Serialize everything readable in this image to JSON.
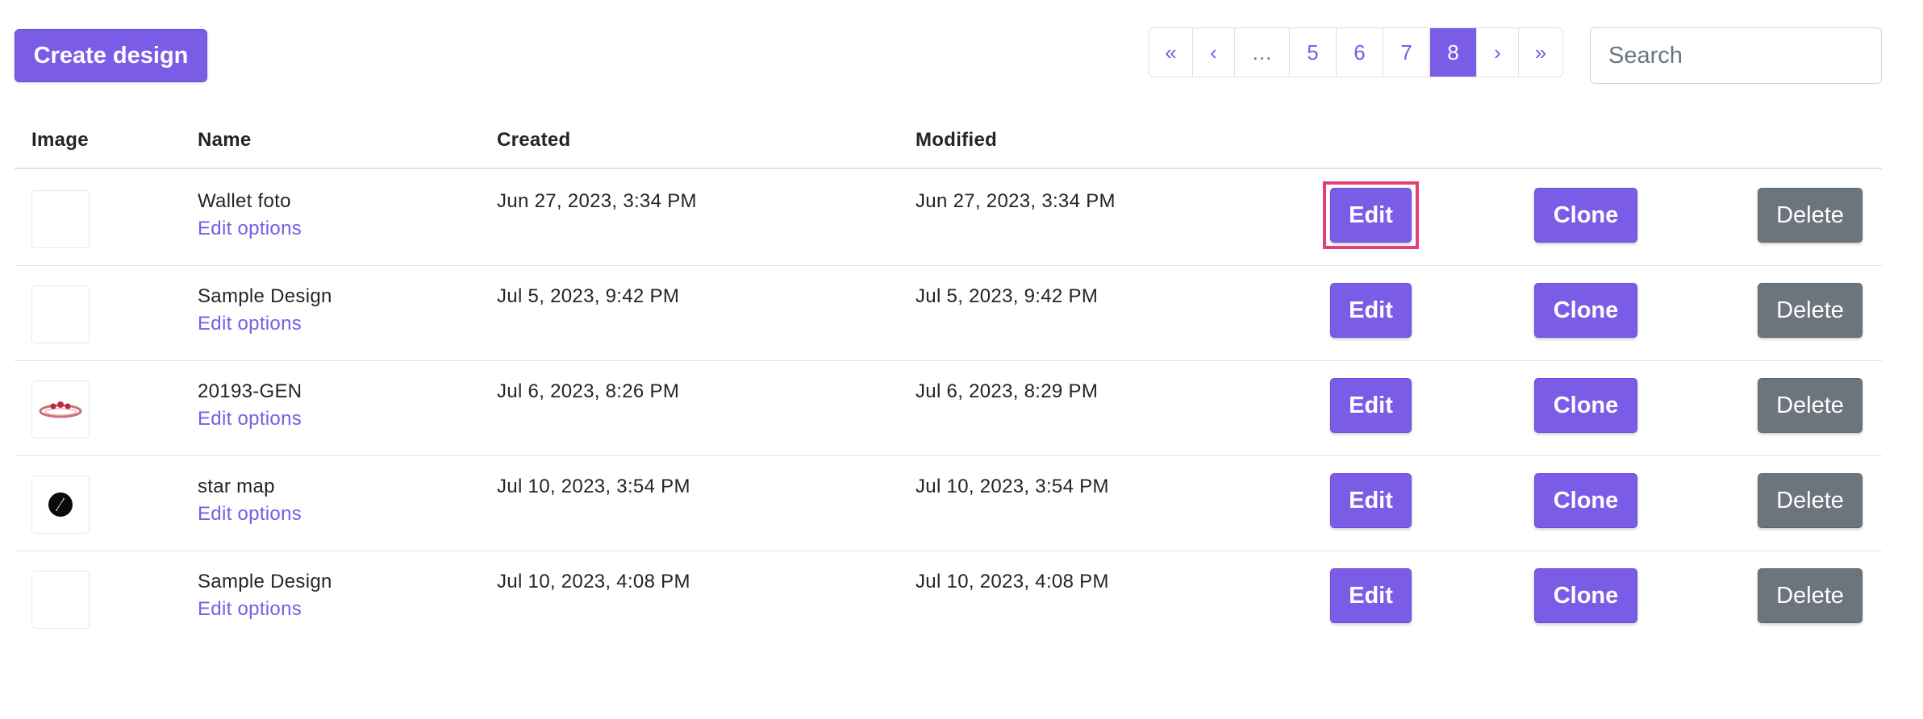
{
  "toolbar": {
    "create_label": "Create design"
  },
  "pagination": {
    "items": [
      {
        "label": "«"
      },
      {
        "label": "‹"
      },
      {
        "label": "…"
      },
      {
        "label": "5"
      },
      {
        "label": "6"
      },
      {
        "label": "7"
      },
      {
        "label": "8",
        "active": true
      },
      {
        "label": "›"
      },
      {
        "label": "»"
      }
    ]
  },
  "search": {
    "placeholder": "Search",
    "value": ""
  },
  "table": {
    "headers": {
      "image": "Image",
      "name": "Name",
      "created": "Created",
      "modified": "Modified"
    },
    "rows": [
      {
        "name": "Wallet foto",
        "options": "Edit options",
        "created": "Jun 27, 2023, 3:34 PM",
        "modified": "Jun 27, 2023, 3:34 PM",
        "thumb": "blank"
      },
      {
        "name": "Sample Design",
        "options": "Edit options",
        "created": "Jul 5, 2023, 9:42 PM",
        "modified": "Jul 5, 2023, 9:42 PM",
        "thumb": "blank"
      },
      {
        "name": "20193-GEN",
        "options": "Edit options",
        "created": "Jul 6, 2023, 8:26 PM",
        "modified": "Jul 6, 2023, 8:29 PM",
        "thumb": "ring-icon"
      },
      {
        "name": "star map",
        "options": "Edit options",
        "created": "Jul 10, 2023, 3:54 PM",
        "modified": "Jul 10, 2023, 3:54 PM",
        "thumb": "star-map-icon"
      },
      {
        "name": "Sample Design",
        "options": "Edit options",
        "created": "Jul 10, 2023, 4:08 PM",
        "modified": "Jul 10, 2023, 4:08 PM",
        "thumb": "blank"
      }
    ]
  },
  "actions": {
    "edit": "Edit",
    "clone": "Clone",
    "delete": "Delete"
  },
  "colors": {
    "accent": "#7b5ce6",
    "secondary": "#6c757d",
    "highlight": "#e23e7a"
  }
}
